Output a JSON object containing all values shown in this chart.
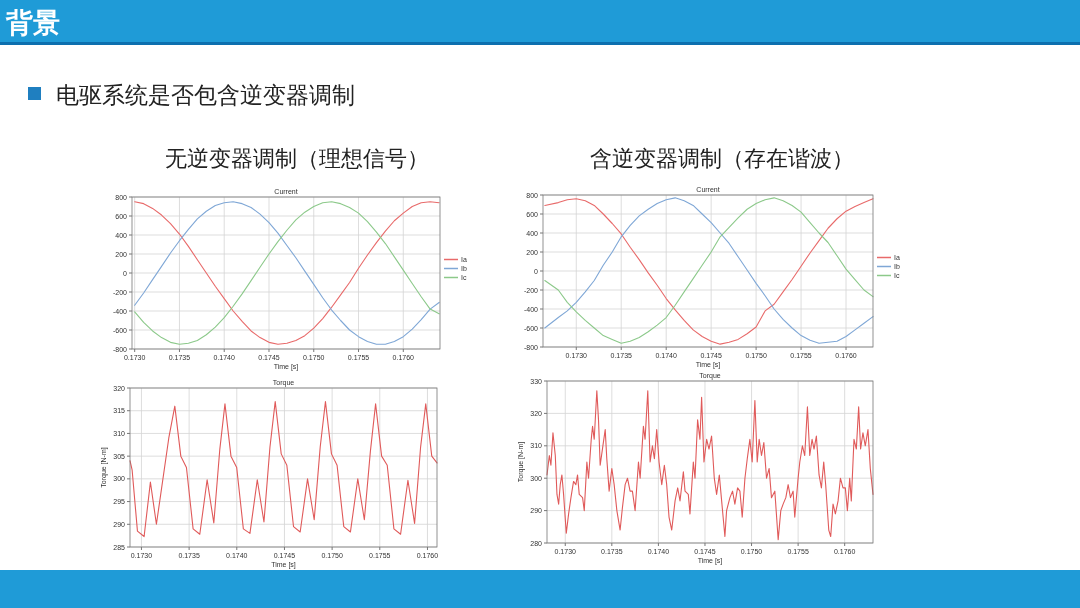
{
  "chart_data": [
    {
      "type": "line",
      "title": "Current",
      "xlabel": "Time [s]",
      "grid": true,
      "legend": "right",
      "marker": "none",
      "line_style": "solid",
      "annotations": [
        "背景",
        "电驱系统是否包含逆变器调制",
        "无逆变器调制（理想信号）"
      ],
      "xlim": [
        0.17297,
        0.17641
      ],
      "ylim": [
        -800,
        800
      ],
      "xticks": [
        {
          "value": 0.173,
          "label": "0.1730"
        },
        {
          "value": 0.1735,
          "label": "0.1735"
        },
        {
          "value": 0.174,
          "label": "0.1740"
        },
        {
          "value": 0.1745,
          "label": "0.1745"
        },
        {
          "value": 0.175,
          "label": "0.1750"
        },
        {
          "value": 0.1755,
          "label": "0.1755"
        },
        {
          "value": 0.176,
          "label": "0.1760"
        }
      ],
      "yticks": [
        -800,
        -600,
        -400,
        -200,
        0,
        200,
        400,
        600,
        800
      ],
      "x": [
        0.173,
        0.1731,
        0.1732,
        0.1733,
        0.1734,
        0.1735,
        0.1736,
        0.1737,
        0.1738,
        0.1739,
        0.174,
        0.1741,
        0.1742,
        0.1743,
        0.1744,
        0.1745,
        0.1746,
        0.1747,
        0.1748,
        0.1749,
        0.175,
        0.1751,
        0.1752,
        0.1753,
        0.1754,
        0.1755,
        0.1756,
        0.1757,
        0.1758,
        0.1759,
        0.176,
        0.1761,
        0.1762,
        0.1763,
        0.1764
      ],
      "series": [
        {
          "name": "Ia",
          "color": "#e86a6a",
          "values": [
            750,
            730,
            680,
            610,
            520,
            410,
            280,
            140,
            0,
            -140,
            -270,
            -400,
            -510,
            -610,
            -680,
            -730,
            -750,
            -740,
            -710,
            -660,
            -580,
            -480,
            -360,
            -230,
            -100,
            50,
            190,
            320,
            440,
            550,
            630,
            700,
            740,
            750,
            740
          ]
        },
        {
          "name": "Ib",
          "color": "#7fa7d6",
          "values": [
            -340,
            -210,
            -70,
            70,
            210,
            340,
            460,
            570,
            650,
            710,
            740,
            750,
            730,
            690,
            620,
            530,
            420,
            290,
            160,
            20,
            -120,
            -260,
            -390,
            -500,
            -600,
            -670,
            -720,
            -750,
            -750,
            -720,
            -670,
            -590,
            -490,
            -380,
            -310
          ]
        },
        {
          "name": "Ic",
          "color": "#8cc98a",
          "values": [
            -410,
            -520,
            -610,
            -680,
            -730,
            -750,
            -740,
            -710,
            -650,
            -570,
            -470,
            -350,
            -220,
            -80,
            60,
            200,
            330,
            450,
            560,
            640,
            700,
            740,
            750,
            730,
            690,
            630,
            540,
            430,
            310,
            170,
            30,
            -110,
            -250,
            -380,
            -430
          ]
        }
      ]
    },
    {
      "type": "line",
      "title": "Current",
      "xlabel": "Time [s]",
      "grid": true,
      "legend": "right",
      "marker": "none",
      "line_style": "solid",
      "annotations": [
        "含逆变器调制（存在谐波）"
      ],
      "xlim": [
        0.17263,
        0.1763
      ],
      "ylim": [
        -800,
        800
      ],
      "xticks": [
        {
          "value": 0.173,
          "label": "0.1730"
        },
        {
          "value": 0.1735,
          "label": "0.1735"
        },
        {
          "value": 0.174,
          "label": "0.1740"
        },
        {
          "value": 0.1745,
          "label": "0.1745"
        },
        {
          "value": 0.175,
          "label": "0.1750"
        },
        {
          "value": 0.1755,
          "label": "0.1755"
        },
        {
          "value": 0.176,
          "label": "0.1760"
        }
      ],
      "yticks": [
        -800,
        -600,
        -400,
        -200,
        0,
        200,
        400,
        600,
        800
      ],
      "x": [
        0.17265,
        0.1728,
        0.1729,
        0.173,
        0.1731,
        0.1732,
        0.1733,
        0.1734,
        0.1735,
        0.1736,
        0.1737,
        0.1738,
        0.1739,
        0.174,
        0.1741,
        0.1742,
        0.1743,
        0.1744,
        0.1745,
        0.1746,
        0.1747,
        0.1748,
        0.1749,
        0.175,
        0.1751,
        0.1752,
        0.1753,
        0.1754,
        0.1755,
        0.1756,
        0.1757,
        0.1758,
        0.1759,
        0.176,
        0.1761,
        0.1762,
        0.1763
      ],
      "series": [
        {
          "name": "Ia",
          "color": "#e86a6a",
          "values": [
            690,
            720,
            750,
            760,
            740,
            690,
            600,
            500,
            390,
            250,
            120,
            -20,
            -150,
            -290,
            -410,
            -520,
            -620,
            -690,
            -740,
            -770,
            -750,
            -720,
            -660,
            -590,
            -420,
            -350,
            -220,
            -90,
            50,
            190,
            320,
            450,
            550,
            630,
            680,
            720,
            760
          ]
        },
        {
          "name": "Ib",
          "color": "#7fa7d6",
          "values": [
            -600,
            -490,
            -420,
            -330,
            -220,
            -100,
            60,
            200,
            360,
            480,
            580,
            650,
            710,
            750,
            770,
            740,
            690,
            600,
            510,
            400,
            290,
            150,
            10,
            -130,
            -260,
            -400,
            -510,
            -600,
            -680,
            -730,
            -760,
            -750,
            -740,
            -690,
            -620,
            -550,
            -480
          ]
        },
        {
          "name": "Ic",
          "color": "#8cc98a",
          "values": [
            -100,
            -200,
            -330,
            -430,
            -520,
            -600,
            -680,
            -720,
            -760,
            -740,
            -700,
            -640,
            -570,
            -490,
            -360,
            -220,
            -80,
            60,
            200,
            360,
            460,
            560,
            650,
            710,
            750,
            770,
            740,
            690,
            620,
            510,
            400,
            300,
            160,
            20,
            -90,
            -200,
            -270
          ]
        }
      ]
    },
    {
      "type": "line",
      "title": "Torque",
      "xlabel": "Time [s]",
      "ylabel": "Torque [N-m]",
      "grid": true,
      "marker": "none",
      "line_style": "solid",
      "xlim": [
        0.17288,
        0.1761
      ],
      "ylim": [
        285,
        320
      ],
      "xticks": [
        {
          "value": 0.173,
          "label": "0.1730"
        },
        {
          "value": 0.1735,
          "label": "0.1735"
        },
        {
          "value": 0.174,
          "label": "0.1740"
        },
        {
          "value": 0.1745,
          "label": "0.1745"
        },
        {
          "value": 0.175,
          "label": "0.1750"
        },
        {
          "value": 0.1755,
          "label": "0.1755"
        },
        {
          "value": 0.176,
          "label": "0.1760"
        }
      ],
      "yticks": [
        285,
        290,
        295,
        300,
        305,
        310,
        315,
        320
      ],
      "series": [
        {
          "color": "#e05a5a",
          "x": [
            0.17288,
            0.172902,
            0.172958,
            0.173028,
            0.173094,
            0.173157,
            0.173287,
            0.17335,
            0.173413,
            0.173472,
            0.173542,
            0.173612,
            0.173689,
            0.173759,
            0.173822,
            0.173876,
            0.173939,
            0.173999,
            0.174069,
            0.174138,
            0.174215,
            0.174285,
            0.174348,
            0.174403,
            0.174466,
            0.174525,
            0.174595,
            0.174665,
            0.174742,
            0.174812,
            0.174875,
            0.17493,
            0.174993,
            0.175052,
            0.175122,
            0.175192,
            0.175269,
            0.175338,
            0.175401,
            0.175456,
            0.175519,
            0.175578,
            0.175648,
            0.175718,
            0.175795,
            0.175865,
            0.175928,
            0.175982,
            0.176045,
            0.1761
          ],
          "values": [
            304,
            302,
            288.5,
            287.3,
            299.3,
            290,
            309,
            316,
            305,
            302.5,
            289,
            287.8,
            299.8,
            290.3,
            306.5,
            316.5,
            305,
            302.5,
            289,
            288,
            299.8,
            290.5,
            307,
            317,
            305.5,
            303,
            289.5,
            288.3,
            300,
            291,
            307,
            317,
            305.5,
            303,
            289.5,
            288.3,
            300,
            291,
            306,
            316.5,
            305,
            303,
            289,
            287.8,
            299.7,
            290.2,
            307,
            316.5,
            305,
            303.5
          ]
        }
      ]
    },
    {
      "type": "line",
      "title": "Torque",
      "xlabel": "Time [s]",
      "ylabel": "Torque [N-m]",
      "grid": true,
      "marker": "none",
      "line_style": "solid",
      "xlim": [
        0.172804,
        0.176304
      ],
      "ylim": [
        280,
        330
      ],
      "xticks": [
        {
          "value": 0.173,
          "label": "0.1730"
        },
        {
          "value": 0.1735,
          "label": "0.1735"
        },
        {
          "value": 0.174,
          "label": "0.1740"
        },
        {
          "value": 0.1745,
          "label": "0.1745"
        },
        {
          "value": 0.175,
          "label": "0.1750"
        },
        {
          "value": 0.1755,
          "label": "0.1755"
        },
        {
          "value": 0.176,
          "label": "0.1760"
        }
      ],
      "yticks": [
        280,
        290,
        300,
        310,
        320,
        330
      ],
      "series": [
        {
          "color": "#e05a5a",
          "x": [
            0.172804,
            0.172829,
            0.172846,
            0.172868,
            0.172893,
            0.172911,
            0.172929,
            0.172946,
            0.172964,
            0.172982,
            0.173011,
            0.173036,
            0.173061,
            0.173089,
            0.173114,
            0.173132,
            0.17315,
            0.173186,
            0.173204,
            0.173232,
            0.17325,
            0.173279,
            0.173293,
            0.173311,
            0.173339,
            0.173357,
            0.173375,
            0.173404,
            0.173429,
            0.173446,
            0.173471,
            0.1735,
            0.173525,
            0.173554,
            0.173589,
            0.173614,
            0.173643,
            0.173668,
            0.173696,
            0.173721,
            0.17375,
            0.173786,
            0.173804,
            0.173839,
            0.173857,
            0.173886,
            0.173911,
            0.173936,
            0.173957,
            0.173982,
            0.174007,
            0.174036,
            0.174064,
            0.174089,
            0.174114,
            0.174143,
            0.174179,
            0.174207,
            0.174232,
            0.174268,
            0.174286,
            0.174321,
            0.174339,
            0.174375,
            0.174393,
            0.174421,
            0.174446,
            0.174464,
            0.174489,
            0.174518,
            0.174543,
            0.174571,
            0.1746,
            0.174625,
            0.174654,
            0.174679,
            0.174714,
            0.174732,
            0.174768,
            0.174796,
            0.174821,
            0.17485,
            0.174875,
            0.1749,
            0.174929,
            0.174954,
            0.174982,
            0.175007,
            0.175036,
            0.175061,
            0.175082,
            0.175107,
            0.175132,
            0.175161,
            0.175189,
            0.175214,
            0.17525,
            0.175286,
            0.175314,
            0.175339,
            0.175368,
            0.175393,
            0.175418,
            0.175446,
            0.175464,
            0.1755,
            0.175518,
            0.175546,
            0.175571,
            0.1756,
            0.175625,
            0.17565,
            0.175671,
            0.175696,
            0.175725,
            0.17575,
            0.175775,
            0.175796,
            0.175829,
            0.17585,
            0.175875,
            0.1759,
            0.175929,
            0.175954,
            0.175982,
            0.176007,
            0.176029,
            0.176054,
            0.176071,
            0.1761,
            0.176125,
            0.17615,
            0.176171,
            0.176196,
            0.176221,
            0.17625,
            0.176275,
            0.176304
          ],
          "values": [
            301,
            307,
            304,
            314,
            307,
            295,
            292,
            298,
            301,
            295,
            283,
            289,
            294,
            299,
            298,
            301,
            295,
            294,
            290,
            305,
            300,
            312,
            316,
            312,
            327,
            318,
            304,
            310,
            315,
            306,
            296,
            303,
            298,
            290,
            284,
            291,
            298,
            300,
            296,
            296,
            290,
            305,
            300,
            316,
            312,
            327,
            305,
            310,
            306,
            315,
            305,
            298,
            304,
            298,
            288,
            284,
            293,
            297,
            293,
            302,
            296,
            295,
            289,
            305,
            300,
            318,
            312,
            325,
            305,
            312,
            309,
            313,
            300,
            295,
            301,
            293,
            282,
            290,
            294,
            296,
            292,
            297,
            296,
            288,
            300,
            306,
            312,
            305,
            324,
            305,
            312,
            307,
            311,
            300,
            303,
            294,
            296,
            281,
            290,
            292,
            294,
            298,
            294,
            296,
            288,
            300,
            305,
            310,
            307,
            322,
            307,
            312,
            309,
            313,
            301,
            297,
            305,
            298,
            284,
            282,
            292,
            289,
            293,
            300,
            297,
            297,
            290,
            300,
            293,
            312,
            309,
            322,
            309,
            314,
            310,
            315,
            303,
            295
          ]
        }
      ]
    }
  ]
}
